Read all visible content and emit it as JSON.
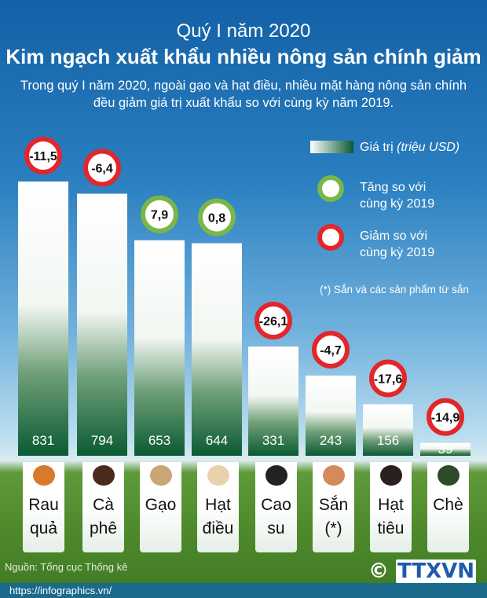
{
  "header": {
    "subtitle": "Quý I năm 2020",
    "title": "Kim ngạch xuất khẩu nhiều nông sản chính giảm",
    "description": "Trong quý I năm 2020, ngoài gạo và hạt điều, nhiều mặt hàng nông sản chính đều giảm giá trị xuất khẩu so với cùng kỳ năm 2019."
  },
  "legend": {
    "value_label": "Giá trị",
    "value_unit": "(triệu USD)",
    "increase": "Tăng so với cùng kỳ 2019",
    "decrease": "Giảm so với cùng kỳ 2019",
    "note": "(*) Sắn và các sản phẩm từ sắn"
  },
  "colors": {
    "increase": "#7ab648",
    "decrease": "#e3262b",
    "bar_dark": "#0b5a33"
  },
  "chart_data": {
    "type": "bar",
    "categories": [
      "Rau quả",
      "Cà phê",
      "Gạo",
      "Hạt điều",
      "Cao su",
      "Sắn (*)",
      "Hạt tiêu",
      "Chè"
    ],
    "series": [
      {
        "name": "Giá trị (triệu USD)",
        "values": [
          831,
          794,
          653,
          644,
          331,
          243,
          156,
          39
        ]
      },
      {
        "name": "Tăng/giảm so với cùng kỳ 2019 (%)",
        "values": [
          -11.5,
          -6.4,
          7.9,
          0.8,
          -26.1,
          -4.7,
          -17.6,
          -14.9
        ]
      }
    ],
    "value_labels": [
      "831",
      "794",
      "653",
      "644",
      "331",
      "243",
      "156",
      "39"
    ],
    "change_labels": [
      "-11,5",
      "-6,4",
      "7,9",
      "0,8",
      "-26,1",
      "-4,7",
      "-17,6",
      "-14,9"
    ]
  },
  "labels": [
    [
      "Rau",
      "quả"
    ],
    [
      "Cà",
      "phê"
    ],
    [
      "Gạo",
      ""
    ],
    [
      "Hạt",
      "điều"
    ],
    [
      "Cao",
      "su"
    ],
    [
      "Sắn",
      "(*)"
    ],
    [
      "Hạt",
      "tiêu"
    ],
    [
      "Chè",
      ""
    ]
  ],
  "icons": [
    "fruit-icon",
    "coffee-icon",
    "rice-sack-icon",
    "cashew-icon",
    "tire-icon",
    "cassava-icon",
    "pepper-icon",
    "tea-icon"
  ],
  "footer": {
    "source": "Nguồn: Tổng cục Thống kê",
    "url": "https://infographics.vn/",
    "logo": "© TTXVN"
  }
}
